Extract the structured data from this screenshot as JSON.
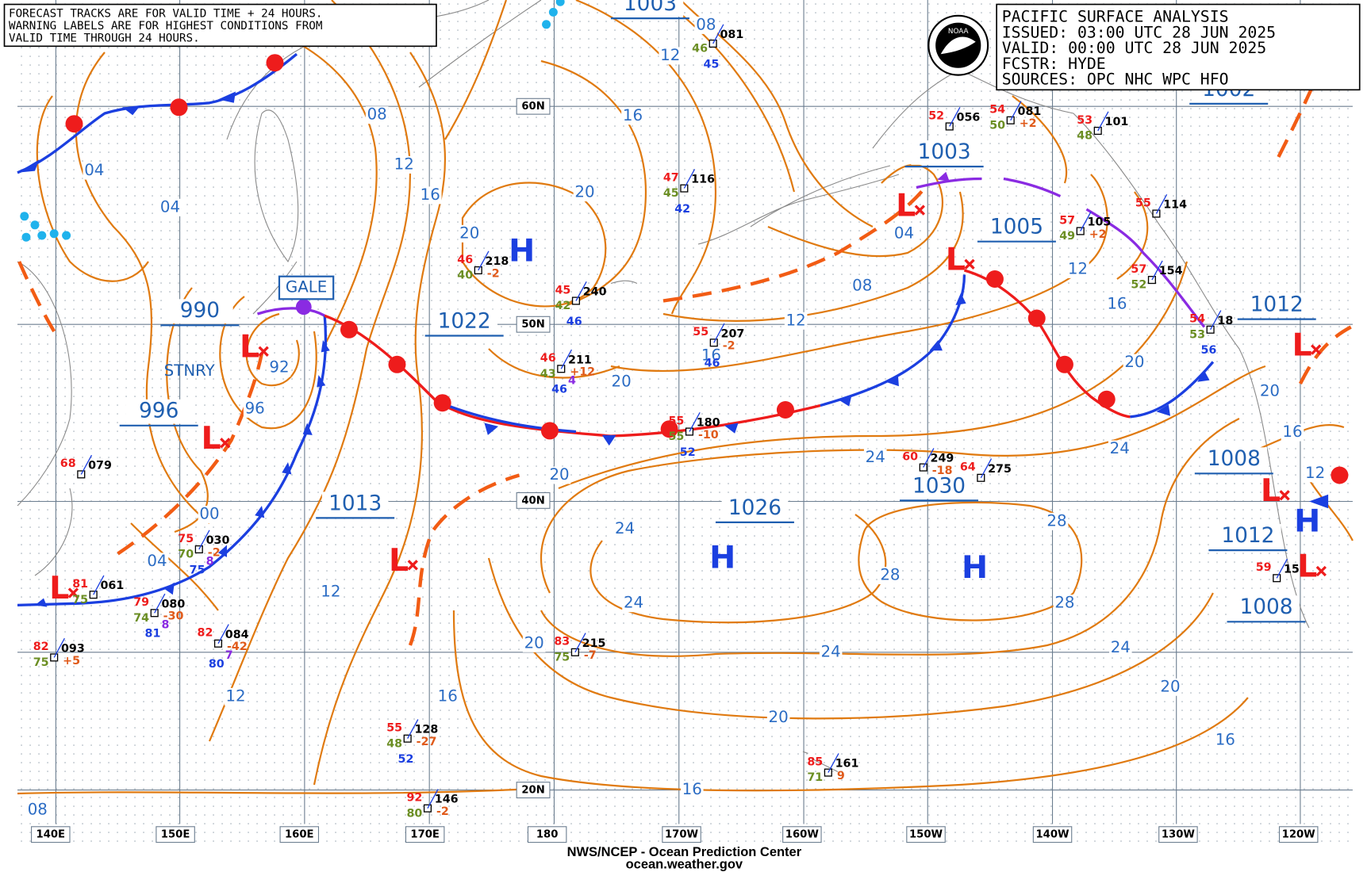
{
  "notice": [
    "FORECAST TRACKS ARE FOR VALID TIME + 24 HOURS.",
    "WARNING LABELS ARE FOR HIGHEST CONDITIONS FROM",
    "VALID TIME THROUGH 24 HOURS."
  ],
  "title_block": [
    "PACIFIC SURFACE ANALYSIS",
    "ISSUED: 03:00 UTC 28 JUN 2025",
    "VALID:  00:00 UTC 28 JUN 2025",
    "FCSTR:  HYDE",
    "SOURCES: OPC NHC WPC HFO"
  ],
  "logo": "NOAA",
  "footer": [
    "NWS/NCEP - Ocean Prediction Center",
    "ocean.weather.gov"
  ],
  "longitudes": [
    "140E",
    "150E",
    "160E",
    "170E",
    "180",
    "170W",
    "160W",
    "150W",
    "140W",
    "130W",
    "120W"
  ],
  "latitudes": [
    "60N",
    "50N",
    "40N",
    "20N"
  ],
  "pressure_labels": [
    "1003",
    "1003",
    "1005",
    "990",
    "996",
    "1022",
    "1013",
    "1026",
    "1030",
    "1012",
    "1008",
    "1012",
    "1008",
    "1002"
  ],
  "highs": [
    "H",
    "H",
    "H",
    "H"
  ],
  "lows": [
    "L",
    "L",
    "L",
    "L",
    "L",
    "L",
    "L",
    "L",
    "L"
  ],
  "front_labels": [
    "STNRY"
  ],
  "warnings": [
    "GALE"
  ],
  "isobar_labels": [
    "08",
    "04",
    "04",
    "12",
    "16",
    "16",
    "12",
    "08",
    "20",
    "20",
    "92",
    "96",
    "00",
    "04",
    "12",
    "12",
    "16",
    "20",
    "20",
    "16",
    "12",
    "08",
    "04",
    "12",
    "16",
    "20",
    "20",
    "16",
    "12",
    "24",
    "24",
    "24",
    "24",
    "28",
    "28",
    "28",
    "24",
    "24",
    "20",
    "20",
    "20",
    "16",
    "16",
    "08"
  ],
  "stations": [
    {
      "id": "081",
      "dew": "46",
      "sea": "45"
    },
    {
      "id": "116",
      "temp": "47",
      "dew": "45",
      "sea": "42"
    },
    {
      "id": "218",
      "temp": "46",
      "dew": "40",
      "tend": "-2"
    },
    {
      "id": "240",
      "temp": "45",
      "dew": "42",
      "sea": "46"
    },
    {
      "id": "211",
      "temp": "46",
      "dew": "43",
      "wave": "4",
      "sea": "46",
      "tend": "+12"
    },
    {
      "id": "207",
      "temp": "55",
      "sea": "46",
      "tend": "-2"
    },
    {
      "id": "180",
      "temp": "55",
      "dew": "55",
      "sea": "52",
      "tend": "-10"
    },
    {
      "id": "249",
      "temp": "60",
      "tend": "-18"
    },
    {
      "id": "275",
      "temp": "64"
    },
    {
      "id": "056",
      "temp": "52"
    },
    {
      "id": "081",
      "temp": "54",
      "dew": "50",
      "tend": "+2"
    },
    {
      "id": "101",
      "temp": "53",
      "dew": "48"
    },
    {
      "id": "105",
      "temp": "57",
      "dew": "49",
      "tend": "+2"
    },
    {
      "id": "114",
      "temp": "55"
    },
    {
      "id": "154",
      "temp": "57",
      "dew": "52"
    },
    {
      "id": "079",
      "temp": "68"
    },
    {
      "id": "030",
      "temp": "75",
      "dew": "70",
      "wave": "8",
      "sea": "75",
      "tend": "-2"
    },
    {
      "id": "061",
      "temp": "81",
      "dew": "75"
    },
    {
      "id": "080",
      "temp": "79",
      "dew": "74",
      "wave": "8",
      "sea": "81",
      "tend": "-30"
    },
    {
      "id": "084",
      "temp": "82",
      "wave": "7",
      "sea": "80",
      "tend": "-42"
    },
    {
      "id": "093",
      "temp": "82",
      "dew": "75",
      "tend": "+5"
    },
    {
      "id": "215",
      "temp": "83",
      "dew": "75",
      "tend": "-7"
    },
    {
      "id": "128",
      "temp": "55",
      "dew": "48",
      "sea": "52",
      "tend": "-27"
    },
    {
      "id": "146",
      "temp": "92",
      "dew": "80",
      "tend": "-2"
    },
    {
      "id": "161",
      "temp": "85",
      "dew": "71",
      "tend": "9"
    },
    {
      "id": "18",
      "temp": "54",
      "dew": "53",
      "sea": "56"
    },
    {
      "id": "15",
      "temp": "59"
    }
  ]
}
